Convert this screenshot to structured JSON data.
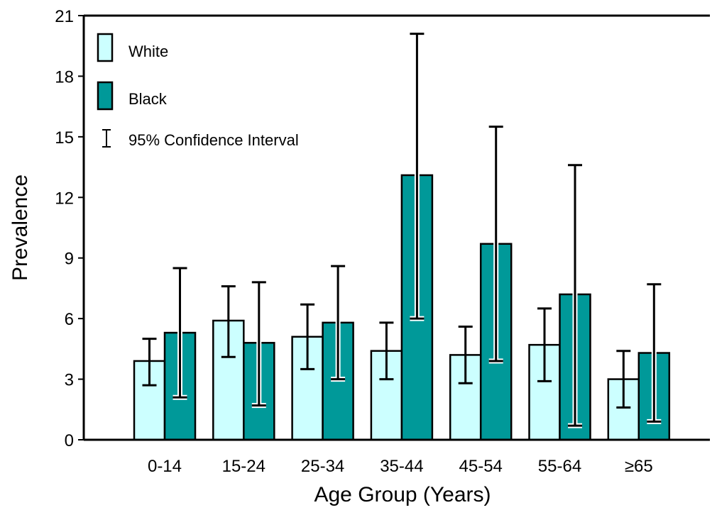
{
  "chart_data": {
    "type": "bar",
    "xlabel": "Age Group (Years)",
    "ylabel": "Prevalence",
    "ylim": [
      0,
      21
    ],
    "yticks": [
      0,
      3,
      6,
      9,
      12,
      15,
      18,
      21
    ],
    "categories": [
      "0-14",
      "15-24",
      "25-34",
      "35-44",
      "45-54",
      "55-64",
      "≥65"
    ],
    "series": [
      {
        "name": "White",
        "color": "#ccffff",
        "values": [
          3.9,
          5.9,
          5.1,
          4.4,
          4.2,
          4.7,
          3.0
        ],
        "ci_low": [
          2.7,
          4.1,
          3.5,
          3.0,
          2.8,
          2.9,
          1.6
        ],
        "ci_high": [
          5.0,
          7.6,
          6.7,
          5.8,
          5.6,
          6.5,
          4.4
        ]
      },
      {
        "name": "Black",
        "color": "#009999",
        "values": [
          5.3,
          4.8,
          5.8,
          13.1,
          9.7,
          7.2,
          4.3
        ],
        "ci_low": [
          2.1,
          1.7,
          3.0,
          6.0,
          3.9,
          0.7,
          0.9
        ],
        "ci_high": [
          8.5,
          7.8,
          8.6,
          20.1,
          15.5,
          13.6,
          7.7
        ]
      }
    ],
    "legend": {
      "position": "top-left",
      "ci_label": "95% Confidence Interval"
    },
    "grid": false
  }
}
